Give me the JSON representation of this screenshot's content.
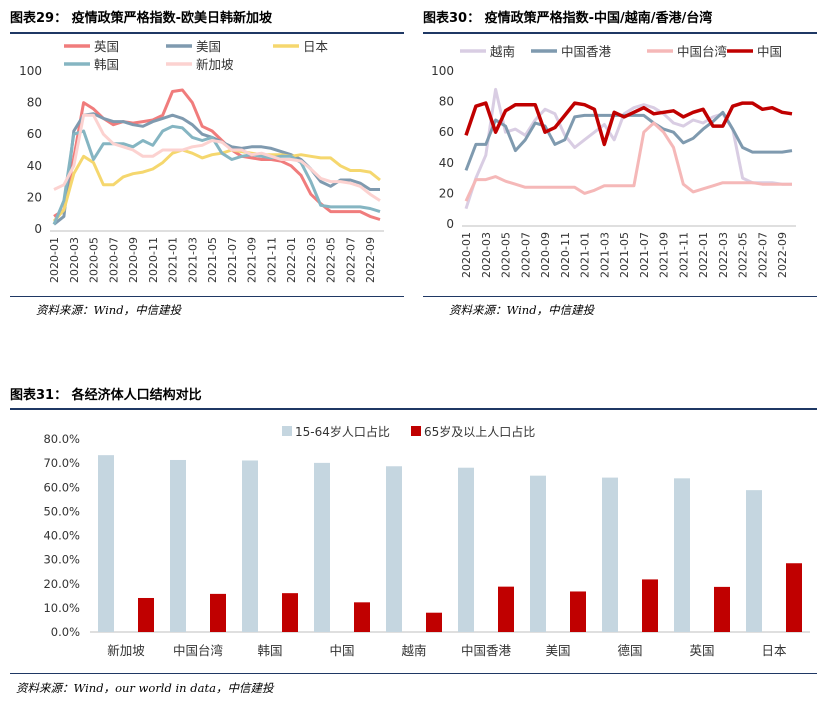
{
  "fig29": {
    "title": "图表29：  疫情政策严格指数-欧美日韩新加坡",
    "source": "资料来源：Wind，中信建投",
    "chart_data": {
      "type": "line",
      "x": [
        "2020-01",
        "2020-02",
        "2020-03",
        "2020-04",
        "2020-05",
        "2020-06",
        "2020-07",
        "2020-08",
        "2020-09",
        "2020-10",
        "2020-11",
        "2020-12",
        "2021-01",
        "2021-02",
        "2021-03",
        "2021-04",
        "2021-05",
        "2021-06",
        "2021-07",
        "2021-08",
        "2021-09",
        "2021-10",
        "2021-11",
        "2021-12",
        "2022-01",
        "2022-02",
        "2022-03",
        "2022-04",
        "2022-05",
        "2022-06",
        "2022-07",
        "2022-08",
        "2022-09",
        "2022-10"
      ],
      "xticks": [
        "2020-01",
        "2020-03",
        "2020-05",
        "2020-07",
        "2020-09",
        "2020-11",
        "2021-01",
        "2021-03",
        "2021-05",
        "2021-07",
        "2021-09",
        "2021-11",
        "2022-01",
        "2022-03",
        "2022-05",
        "2022-07",
        "2022-09"
      ],
      "ylim": [
        0,
        100
      ],
      "yticks": [
        0,
        20,
        40,
        60,
        80,
        100
      ],
      "series": [
        {
          "name": "英国",
          "color": "#f07c7c",
          "values": [
            8,
            12,
            45,
            80,
            76,
            70,
            66,
            68,
            67,
            68,
            69,
            72,
            87,
            88,
            80,
            65,
            62,
            56,
            50,
            46,
            45,
            44,
            44,
            43,
            40,
            34,
            22,
            16,
            11,
            11,
            11,
            11,
            8,
            6
          ]
        },
        {
          "name": "美国",
          "color": "#7f9aaf",
          "values": [
            3,
            8,
            62,
            72,
            73,
            70,
            68,
            68,
            66,
            65,
            68,
            70,
            72,
            70,
            66,
            60,
            58,
            55,
            52,
            51,
            52,
            52,
            51,
            49,
            47,
            44,
            38,
            30,
            27,
            31,
            31,
            29,
            25,
            25
          ]
        },
        {
          "name": "日本",
          "color": "#f5d76e",
          "values": [
            5,
            12,
            35,
            46,
            42,
            28,
            28,
            33,
            35,
            36,
            38,
            42,
            48,
            50,
            48,
            45,
            47,
            48,
            50,
            49,
            48,
            47,
            47,
            47,
            46,
            47,
            46,
            45,
            45,
            40,
            37,
            37,
            36,
            31
          ]
        },
        {
          "name": "韩国",
          "color": "#85b5c2",
          "values": [
            3,
            18,
            60,
            62,
            44,
            54,
            54,
            54,
            52,
            56,
            53,
            62,
            65,
            64,
            58,
            56,
            58,
            48,
            44,
            46,
            47,
            46,
            45,
            46,
            46,
            42,
            30,
            15,
            14,
            14,
            14,
            14,
            13,
            11
          ]
        },
        {
          "name": "新加坡",
          "color": "#fcd2d0",
          "values": [
            25,
            28,
            40,
            72,
            72,
            60,
            54,
            52,
            50,
            46,
            46,
            50,
            50,
            50,
            52,
            53,
            56,
            55,
            50,
            50,
            47,
            48,
            46,
            44,
            44,
            43,
            38,
            32,
            30,
            30,
            29,
            27,
            22,
            18
          ]
        }
      ]
    }
  },
  "fig30": {
    "title": "图表30：  疫情政策严格指数-中国/越南/香港/台湾",
    "source": "资料来源：Wind，中信建投",
    "chart_data": {
      "type": "line",
      "x": [
        "2020-01",
        "2020-02",
        "2020-03",
        "2020-04",
        "2020-05",
        "2020-06",
        "2020-07",
        "2020-08",
        "2020-09",
        "2020-10",
        "2020-11",
        "2020-12",
        "2021-01",
        "2021-02",
        "2021-03",
        "2021-04",
        "2021-05",
        "2021-06",
        "2021-07",
        "2021-08",
        "2021-09",
        "2021-10",
        "2021-11",
        "2021-12",
        "2022-01",
        "2022-02",
        "2022-03",
        "2022-04",
        "2022-05",
        "2022-06",
        "2022-07",
        "2022-08",
        "2022-09",
        "2022-10"
      ],
      "xticks": [
        "2020-01",
        "2020-03",
        "2020-05",
        "2020-07",
        "2020-09",
        "2020-11",
        "2021-01",
        "2021-03",
        "2021-05",
        "2021-07",
        "2021-09",
        "2021-11",
        "2022-01",
        "2022-03",
        "2022-05",
        "2022-07",
        "2022-09"
      ],
      "ylim": [
        0,
        100
      ],
      "yticks": [
        0,
        20,
        40,
        60,
        80,
        100
      ],
      "series": [
        {
          "name": "越南",
          "color": "#d9cde3",
          "values": [
            10,
            30,
            45,
            88,
            60,
            62,
            58,
            68,
            75,
            72,
            58,
            50,
            55,
            60,
            65,
            55,
            72,
            76,
            78,
            76,
            72,
            66,
            64,
            68,
            66,
            70,
            72,
            62,
            30,
            27,
            27,
            27,
            26,
            26
          ]
        },
        {
          "name": "中国香港",
          "color": "#7f9aaf",
          "values": [
            35,
            52,
            52,
            68,
            64,
            48,
            55,
            66,
            64,
            52,
            55,
            70,
            71,
            71,
            71,
            71,
            71,
            71,
            71,
            66,
            62,
            60,
            53,
            56,
            62,
            67,
            73,
            62,
            50,
            47,
            47,
            47,
            47,
            48
          ]
        },
        {
          "name": "中国台湾",
          "color": "#f5b8b8",
          "values": [
            15,
            29,
            29,
            31,
            28,
            26,
            24,
            24,
            24,
            24,
            24,
            24,
            20,
            22,
            25,
            25,
            25,
            25,
            60,
            66,
            60,
            50,
            26,
            21,
            23,
            25,
            27,
            27,
            27,
            27,
            26,
            26,
            26,
            26
          ]
        },
        {
          "name": "中国",
          "color": "#c00000",
          "values": [
            58,
            77,
            79,
            60,
            74,
            78,
            78,
            78,
            60,
            63,
            71,
            79,
            78,
            75,
            52,
            73,
            70,
            73,
            76,
            72,
            73,
            74,
            70,
            73,
            75,
            64,
            64,
            77,
            79,
            79,
            75,
            76,
            73,
            72
          ]
        }
      ]
    }
  },
  "fig31": {
    "title": "图表31：  各经济体人口结构对比",
    "source": "资料来源：Wind，our world in data，中信建投",
    "chart_data": {
      "type": "bar",
      "categories": [
        "新加坡",
        "中国台湾",
        "韩国",
        "中国",
        "越南",
        "中国香港",
        "美国",
        "德国",
        "英国",
        "日本"
      ],
      "ylim": [
        0,
        80
      ],
      "yticks": [
        "0.0%",
        "10.0%",
        "20.0%",
        "30.0%",
        "40.0%",
        "50.0%",
        "60.0%",
        "70.0%",
        "80.0%"
      ],
      "series": [
        {
          "name": "15-64岁人口占比",
          "color": "#c5d6e0",
          "values": [
            73.3,
            71.3,
            71.1,
            70.1,
            68.7,
            68.1,
            64.8,
            64.0,
            63.7,
            58.8
          ]
        },
        {
          "name": "65岁及以上人口占比",
          "color": "#c00000",
          "values": [
            14.1,
            15.8,
            16.1,
            12.3,
            8.0,
            18.8,
            16.8,
            21.8,
            18.7,
            28.5
          ]
        }
      ]
    }
  }
}
